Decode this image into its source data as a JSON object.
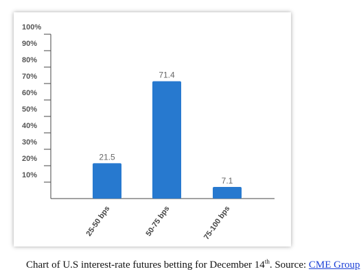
{
  "chart_data": {
    "type": "bar",
    "categories": [
      "25-50 bps",
      "50-75 bps",
      "75-100 bps"
    ],
    "values": [
      21.5,
      71.4,
      7.1
    ],
    "value_labels": [
      "21.5",
      "71.4",
      "7.1"
    ],
    "yticks": [
      "10%",
      "20%",
      "30%",
      "40%",
      "50%",
      "60%",
      "70%",
      "80%",
      "90%",
      "100%"
    ],
    "ylim": [
      0,
      100
    ],
    "bar_color": "#2779cf",
    "grid": false
  },
  "caption": {
    "text": "Chart of U.S interest-rate futures betting for December 14",
    "superscript": "th",
    "source_prefix": ". Source: ",
    "source_link": "CME Group"
  }
}
